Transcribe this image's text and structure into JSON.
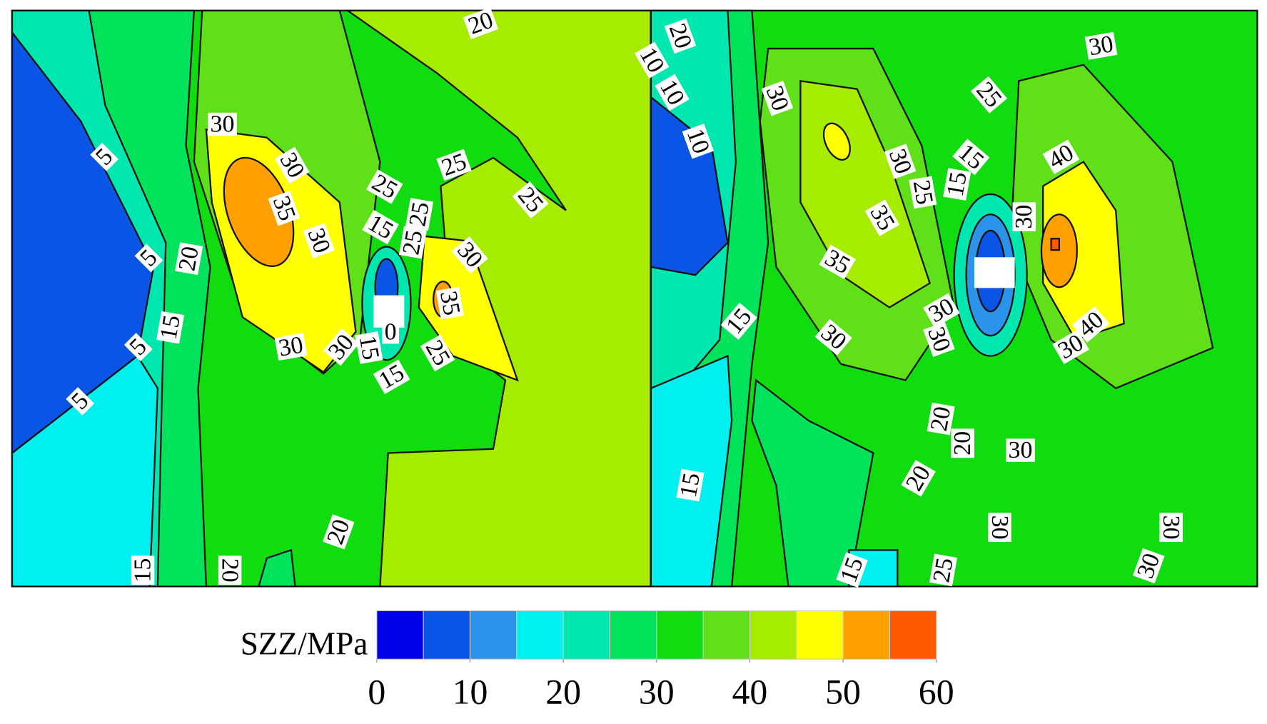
{
  "chart_data": {
    "type": "contour",
    "colorbar": {
      "label": "SZZ/MPa",
      "levels": [
        0,
        5,
        10,
        15,
        20,
        25,
        30,
        35,
        40,
        45,
        50,
        55,
        60
      ],
      "colors": [
        "#0000e6",
        "#0a55e6",
        "#2b93ea",
        "#00f0f0",
        "#00e8b0",
        "#00e35a",
        "#10dc10",
        "#60e018",
        "#a6ec00",
        "#ffff00",
        "#ffa000",
        "#ff5a00"
      ],
      "ticks": [
        0,
        10,
        20,
        30,
        40,
        50,
        60
      ]
    },
    "panels": [
      {
        "contour_labels": [
          20,
          30,
          5,
          30,
          35,
          30,
          25,
          25,
          15,
          25,
          30,
          25,
          25,
          5,
          20,
          35,
          15,
          5,
          30,
          30,
          15,
          0,
          25,
          15,
          5,
          20,
          15,
          20
        ]
      },
      {
        "contour_labels": [
          20,
          10,
          10,
          10,
          30,
          30,
          25,
          30,
          25,
          15,
          15,
          40,
          35,
          30,
          35,
          15,
          30,
          30,
          30,
          40,
          30,
          20,
          20,
          30,
          20,
          15,
          30,
          30,
          30,
          15,
          25
        ]
      }
    ]
  }
}
